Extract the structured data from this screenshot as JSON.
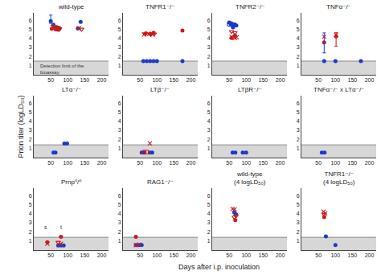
{
  "xlabel": "Days after i.p. inoculation",
  "chart_data": [
    {
      "type": "scatter",
      "title": "wild-type",
      "detection_limit": 1.5,
      "xlim": [
        0,
        220
      ],
      "xticks": [
        50,
        100,
        150,
        200
      ],
      "ylim": [
        0,
        6.8
      ],
      "yticks": [
        1,
        2,
        3,
        4,
        5,
        6
      ],
      "grid": false,
      "series": [
        {
          "color": "#1a3acc",
          "marker": "circle",
          "x": [
            50,
            58,
            63,
            68,
            75,
            130,
            138
          ],
          "values": [
            5.9,
            5.5,
            5.1,
            5.2,
            5.1,
            5.1,
            5.8
          ]
        },
        {
          "color": "#cc1a1a",
          "marker": "circle",
          "x": [
            53,
            65,
            72
          ],
          "values": [
            5.05,
            5.0,
            4.95
          ]
        },
        {
          "color": "#cc1a1a",
          "marker": "x",
          "x": [
            56,
            67,
            73,
            133
          ],
          "values": [
            5.25,
            5.1,
            5.05,
            5.1
          ]
        },
        {
          "color": "#cc1a1a",
          "marker": "triangle-down-open",
          "x": [
            61,
            70,
            76,
            141
          ],
          "values": [
            5.3,
            5.2,
            5.05,
            5.0
          ]
        },
        {
          "type": "errorbar",
          "color": "#1a3acc",
          "x": [
            50
          ],
          "values": [
            6.1
          ],
          "error": [
            0.45
          ]
        }
      ],
      "annotations": [
        {
          "text": "Detection limit of the\nbioassay",
          "x": 15,
          "y": 1.45
        }
      ]
    },
    {
      "type": "scatter",
      "title": "TNFR1⁻/⁻",
      "detection_limit": 1.5,
      "xlim": [
        0,
        220
      ],
      "xticks": [
        50,
        100,
        150,
        200
      ],
      "ylim": [
        0,
        6.8
      ],
      "yticks": [
        1,
        2,
        3,
        4,
        5,
        6
      ],
      "grid": false,
      "series": [
        {
          "color": "#1a3acc",
          "marker": "circle",
          "x": [
            60,
            70,
            80,
            90,
            100,
            175
          ],
          "values": [
            1.5,
            1.5,
            1.5,
            1.5,
            1.5,
            1.5
          ]
        },
        {
          "color": "#cc1a1a",
          "marker": "circle",
          "x": [
            67,
            80,
            90,
            175
          ],
          "values": [
            4.55,
            4.5,
            4.62,
            4.85
          ]
        },
        {
          "color": "#cc1a1a",
          "marker": "x",
          "x": [
            62,
            77,
            87
          ],
          "values": [
            4.42,
            4.48,
            4.42
          ]
        },
        {
          "color": "#cc1a1a",
          "marker": "triangle-down-open",
          "x": [
            65,
            82,
            92
          ],
          "values": [
            4.5,
            4.42,
            4.48
          ]
        }
      ]
    },
    {
      "type": "scatter",
      "title": "TNFR2⁻/⁻",
      "detection_limit": 1.5,
      "xlim": [
        0,
        220
      ],
      "xticks": [
        50,
        100,
        150,
        200
      ],
      "ylim": [
        0,
        6.8
      ],
      "yticks": [
        1,
        2,
        3,
        4,
        5,
        6
      ],
      "grid": false,
      "series": [
        {
          "color": "#1a3acc",
          "marker": "circle",
          "x": [
            50,
            56,
            61,
            66,
            71
          ],
          "values": [
            5.75,
            5.55,
            5.2,
            5.55,
            5.4
          ]
        },
        {
          "color": "#1a3acc",
          "marker": "circle-open",
          "x": [
            50,
            56,
            61
          ],
          "values": [
            5.55,
            5.6,
            5.45
          ]
        },
        {
          "color": "#cc1a1a",
          "marker": "circle",
          "x": [
            57,
            67
          ],
          "values": [
            4.05,
            4.3
          ]
        },
        {
          "color": "#cc1a1a",
          "marker": "x",
          "x": [
            57,
            67,
            72
          ],
          "values": [
            4.18,
            4.02,
            4.12
          ]
        },
        {
          "color": "#cc1a1a",
          "marker": "triangle-down-open",
          "x": [
            57,
            67
          ],
          "values": [
            4.75,
            4.62
          ]
        }
      ]
    },
    {
      "type": "scatter",
      "title": "TNFα⁻/⁻",
      "detection_limit": 1.5,
      "xlim": [
        0,
        220
      ],
      "xticks": [
        50,
        100,
        150,
        200
      ],
      "ylim": [
        0,
        6.8
      ],
      "yticks": [
        1,
        2,
        3,
        4,
        5,
        6
      ],
      "grid": false,
      "series": [
        {
          "color": "#1a3acc",
          "marker": "circle",
          "x": [
            67,
            100,
            175
          ],
          "values": [
            1.5,
            1.5,
            1.5
          ]
        },
        {
          "color": "#cc1a1a",
          "marker": "circle",
          "x": [
            67,
            102
          ],
          "values": [
            3.55,
            4.22
          ]
        },
        {
          "color": "#cc1a1a",
          "marker": "x",
          "x": [
            67,
            102
          ],
          "values": [
            4.18,
            4.4
          ]
        },
        {
          "type": "errorbar",
          "color": "#1a3acc",
          "x": [
            67
          ],
          "values": [
            3.5
          ],
          "error": [
            1.1
          ]
        },
        {
          "type": "errorbar",
          "color": "#cc1a1a",
          "x": [
            102
          ],
          "values": [
            3.9
          ],
          "error": [
            0.75
          ]
        }
      ]
    },
    {
      "type": "scatter",
      "title": "LTα⁻/⁻",
      "detection_limit": 1.4,
      "ylabel": "Prion titer (logLD₅₀)",
      "xlim": [
        0,
        220
      ],
      "xticks": [
        50,
        100,
        150,
        200
      ],
      "ylim": [
        0,
        6.8
      ],
      "yticks": [
        1,
        2,
        3,
        4,
        5,
        6
      ],
      "grid": false,
      "series": [
        {
          "color": "#1a3acc",
          "marker": "circle",
          "x": [
            58,
            64,
            90,
            98
          ],
          "values": [
            0.55,
            0.55,
            1.55,
            1.55
          ]
        }
      ]
    },
    {
      "type": "scatter",
      "title": "LTβ⁻/⁻",
      "detection_limit": 1.4,
      "xlim": [
        0,
        220
      ],
      "xticks": [
        50,
        100,
        150,
        200
      ],
      "ylim": [
        0,
        6.8
      ],
      "yticks": [
        1,
        2,
        3,
        4,
        5,
        6
      ],
      "grid": false,
      "series": [
        {
          "color": "#1a3acc",
          "marker": "circle",
          "x": [
            55,
            62,
            79,
            86
          ],
          "values": [
            0.55,
            0.55,
            0.55,
            0.55
          ]
        },
        {
          "color": "#cc1a1a",
          "marker": "circle-open",
          "x": [
            62,
            71
          ],
          "values": [
            0.6,
            0.6
          ]
        },
        {
          "color": "#cc1a1a",
          "marker": "x",
          "x": [
            79
          ],
          "values": [
            1.55
          ]
        }
      ]
    },
    {
      "type": "scatter",
      "title": "LTβR⁻/⁻",
      "detection_limit": 1.4,
      "xlim": [
        0,
        220
      ],
      "xticks": [
        50,
        100,
        150,
        200
      ],
      "ylim": [
        0,
        6.8
      ],
      "yticks": [
        1,
        2,
        3,
        4,
        5,
        6
      ],
      "grid": false,
      "series": [
        {
          "color": "#1a3acc",
          "marker": "circle",
          "x": [
            60,
            68,
            90,
            100
          ],
          "values": [
            0.55,
            0.55,
            0.55,
            0.55
          ]
        }
      ]
    },
    {
      "type": "scatter",
      "title": "TNFα⁻/⁻ x LTα⁻/⁻",
      "detection_limit": 1.4,
      "xlim": [
        0,
        220
      ],
      "xticks": [
        50,
        100,
        150,
        200
      ],
      "ylim": [
        0,
        6.8
      ],
      "yticks": [
        1,
        2,
        3,
        4,
        5,
        6
      ],
      "grid": false,
      "series": [
        {
          "color": "#1a3acc",
          "marker": "circle",
          "x": [
            60,
            68
          ],
          "values": [
            0.55,
            0.55
          ]
        }
      ]
    },
    {
      "type": "scatter",
      "title": "Prnp⁰/⁰",
      "detection_limit": 1.4,
      "xlim": [
        0,
        220
      ],
      "xticks": [
        50,
        100,
        150,
        200
      ],
      "ylim": [
        0,
        6.8
      ],
      "yticks": [
        1,
        2,
        3,
        4,
        5,
        6
      ],
      "grid": false,
      "series": [
        {
          "color": "#1a3acc",
          "marker": "circle",
          "x": [
            72,
            80,
            88
          ],
          "values": [
            0.5,
            0.5,
            0.5
          ]
        },
        {
          "color": "#cc1a1a",
          "marker": "circle",
          "x": [
            40,
            80
          ],
          "values": [
            0.85,
            1.45
          ]
        },
        {
          "color": "#cc1a1a",
          "marker": "x",
          "x": [
            40,
            80
          ],
          "values": [
            0.7,
            0.7
          ]
        },
        {
          "color": "#cc1a1a",
          "marker": "triangle-down-open",
          "x": [
            72
          ],
          "values": [
            0.85
          ]
        }
      ],
      "annotations": [
        {
          "text": "s",
          "x": 35,
          "y": 2.0
        },
        {
          "text": "t",
          "x": 80,
          "y": 2.0
        }
      ]
    },
    {
      "type": "scatter",
      "title": "RAG1⁻/⁻",
      "detection_limit": 1.4,
      "xlim": [
        0,
        220
      ],
      "xticks": [
        50,
        100,
        150,
        200
      ],
      "ylim": [
        0,
        6.8
      ],
      "yticks": [
        1,
        2,
        3,
        4,
        5,
        6
      ],
      "grid": false,
      "series": [
        {
          "color": "#1a3acc",
          "marker": "circle",
          "x": [
            38,
            48,
            55
          ],
          "values": [
            0.55,
            0.55,
            0.55
          ]
        },
        {
          "color": "#cc1a1a",
          "marker": "circle",
          "x": [
            38
          ],
          "values": [
            1.45
          ]
        },
        {
          "color": "#cc1a1a",
          "marker": "x",
          "x": [
            38,
            48
          ],
          "values": [
            0.55,
            0.6
          ]
        }
      ]
    },
    {
      "type": "scatter",
      "title": "wild-type\n(4 logLD₅₀)",
      "detection_limit": 1.4,
      "xlim": [
        0,
        220
      ],
      "xticks": [
        50,
        100,
        150,
        200
      ],
      "ylim": [
        0,
        6.8
      ],
      "yticks": [
        1,
        2,
        3,
        4,
        5,
        6
      ],
      "grid": false,
      "series": [
        {
          "color": "#1a3acc",
          "marker": "circle",
          "x": [
            65,
            70
          ],
          "values": [
            4.12,
            3.92
          ]
        },
        {
          "color": "#cc1a1a",
          "marker": "circle",
          "x": [
            68
          ],
          "values": [
            3.3
          ]
        },
        {
          "color": "#cc1a1a",
          "marker": "x",
          "x": [
            60,
            66
          ],
          "values": [
            4.52,
            4.48
          ]
        },
        {
          "color": "#cc1a1a",
          "marker": "triangle-down-open",
          "x": [
            65,
            70
          ],
          "values": [
            3.62,
            3.75
          ]
        }
      ]
    },
    {
      "type": "scatter",
      "title": "TNFR1⁻/⁻\n(4 logLD₅₀)",
      "detection_limit": 1.4,
      "xlim": [
        0,
        220
      ],
      "xticks": [
        50,
        100,
        150,
        200
      ],
      "ylim": [
        0,
        6.8
      ],
      "yticks": [
        1,
        2,
        3,
        4,
        5,
        6
      ],
      "grid": false,
      "series": [
        {
          "color": "#1a3acc",
          "marker": "circle",
          "x": [
            72,
            100
          ],
          "values": [
            1.5,
            0.55
          ]
        },
        {
          "color": "#cc1a1a",
          "marker": "circle",
          "x": [
            67
          ],
          "values": [
            3.62
          ]
        },
        {
          "color": "#cc1a1a",
          "marker": "x",
          "x": [
            65,
            70
          ],
          "values": [
            4.22,
            4.02
          ]
        },
        {
          "color": "#cc1a1a",
          "marker": "triangle-down-open",
          "x": [
            67
          ],
          "values": [
            3.92
          ]
        }
      ]
    }
  ]
}
